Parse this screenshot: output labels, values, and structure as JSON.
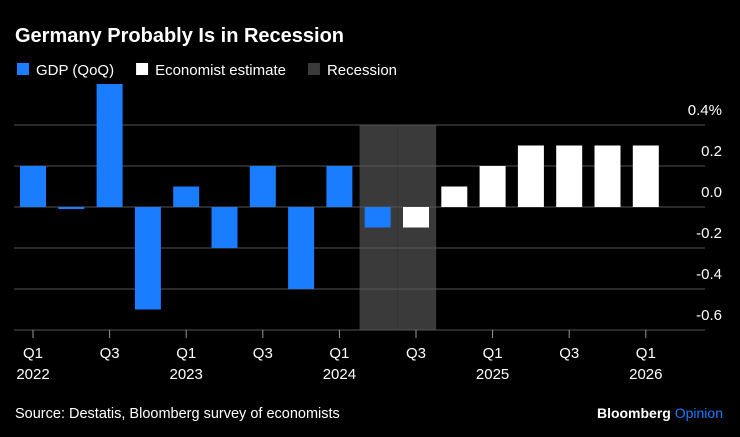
{
  "chart_data": {
    "type": "bar",
    "title": "Germany Probably Is in Recession",
    "source": "Source: Destatis, Bloomberg survey of economists",
    "brand": "Bloomberg",
    "brand_suffix": "Opinion",
    "categories": [
      "Q1",
      null,
      "Q3",
      null,
      "Q1",
      null,
      "Q3",
      null,
      "Q1",
      null,
      "Q3",
      null,
      "Q1",
      null,
      "Q3",
      null,
      "Q1"
    ],
    "category_years": [
      "2022",
      null,
      null,
      null,
      "2023",
      null,
      null,
      null,
      "2024",
      null,
      null,
      null,
      "2025",
      null,
      null,
      null,
      "2026"
    ],
    "series": [
      {
        "name": "GDP (QoQ)",
        "color": "#1a7cff",
        "values": [
          0.2,
          -0.01,
          0.6,
          -0.5,
          0.1,
          -0.2,
          0.2,
          -0.4,
          0.2,
          -0.1,
          null,
          null,
          null,
          null,
          null,
          null,
          null
        ]
      },
      {
        "name": "Economist estimate",
        "color": "#ffffff",
        "values": [
          null,
          null,
          null,
          null,
          null,
          null,
          null,
          null,
          null,
          null,
          -0.1,
          0.1,
          0.2,
          0.3,
          0.3,
          0.3,
          0.3
        ]
      }
    ],
    "recession": {
      "name": "Recession",
      "color": "#3a3a3a",
      "categories": [
        false,
        false,
        false,
        false,
        false,
        false,
        false,
        false,
        false,
        true,
        true,
        false,
        false,
        false,
        false,
        false,
        false
      ]
    },
    "ylim": [
      -0.6,
      0.6
    ],
    "yticks": [
      {
        "value": 0.4,
        "label": "0.4%"
      },
      0.2,
      {
        "value": 0,
        "label": "0.0"
      },
      -0.2,
      -0.4,
      -0.6
    ],
    "grid": true
  }
}
